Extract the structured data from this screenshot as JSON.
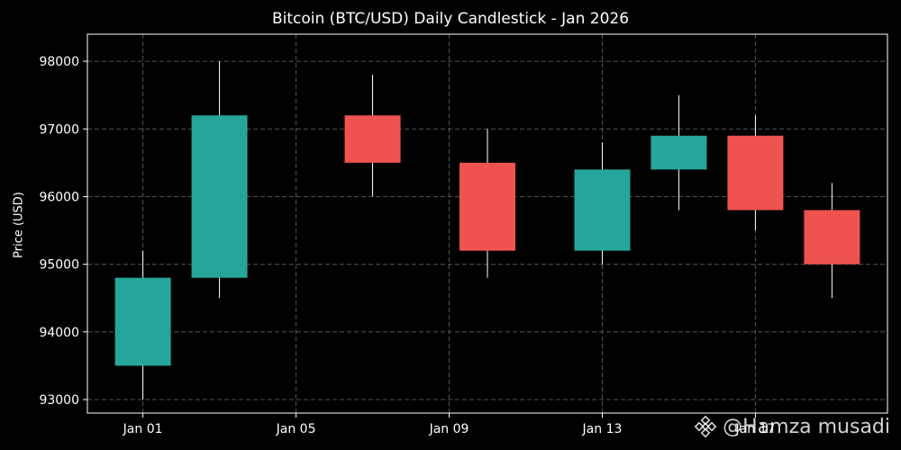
{
  "chart_data": {
    "type": "candlestick",
    "title": "Bitcoin (BTC/USD) Daily Candlestick - Jan 2026",
    "ylabel": "Price (USD)",
    "xlabel": "",
    "ylim": [
      92800,
      98400
    ],
    "yticks": [
      93000,
      94000,
      95000,
      96000,
      97000,
      98000
    ],
    "xticks": [
      "Jan 01",
      "Jan 05",
      "Jan 09",
      "Jan 13",
      "Jan 17"
    ],
    "grid": true,
    "colors": {
      "up": "#26a69a",
      "down": "#ef5350",
      "wick": "#ffffff",
      "grid": "#555555"
    },
    "candles": [
      {
        "date": "Jan 01",
        "open": 93500,
        "high": 95200,
        "low": 93000,
        "close": 94800
      },
      {
        "date": "Jan 03",
        "open": 94800,
        "high": 98000,
        "low": 94500,
        "close": 97200
      },
      {
        "date": "Jan 07",
        "open": 97200,
        "high": 97800,
        "low": 96000,
        "close": 96500
      },
      {
        "date": "Jan 10",
        "open": 96500,
        "high": 97000,
        "low": 94800,
        "close": 95200
      },
      {
        "date": "Jan 13",
        "open": 95200,
        "high": 96800,
        "low": 95000,
        "close": 96400
      },
      {
        "date": "Jan 15",
        "open": 96400,
        "high": 97500,
        "low": 95800,
        "close": 96900
      },
      {
        "date": "Jan 17",
        "open": 96900,
        "high": 97200,
        "low": 95500,
        "close": 95800
      },
      {
        "date": "Jan 19",
        "open": 95800,
        "high": 96200,
        "low": 94500,
        "close": 95000
      }
    ]
  },
  "watermark": {
    "text": "@Hamza musadi",
    "icon": "binance-logo-icon"
  }
}
